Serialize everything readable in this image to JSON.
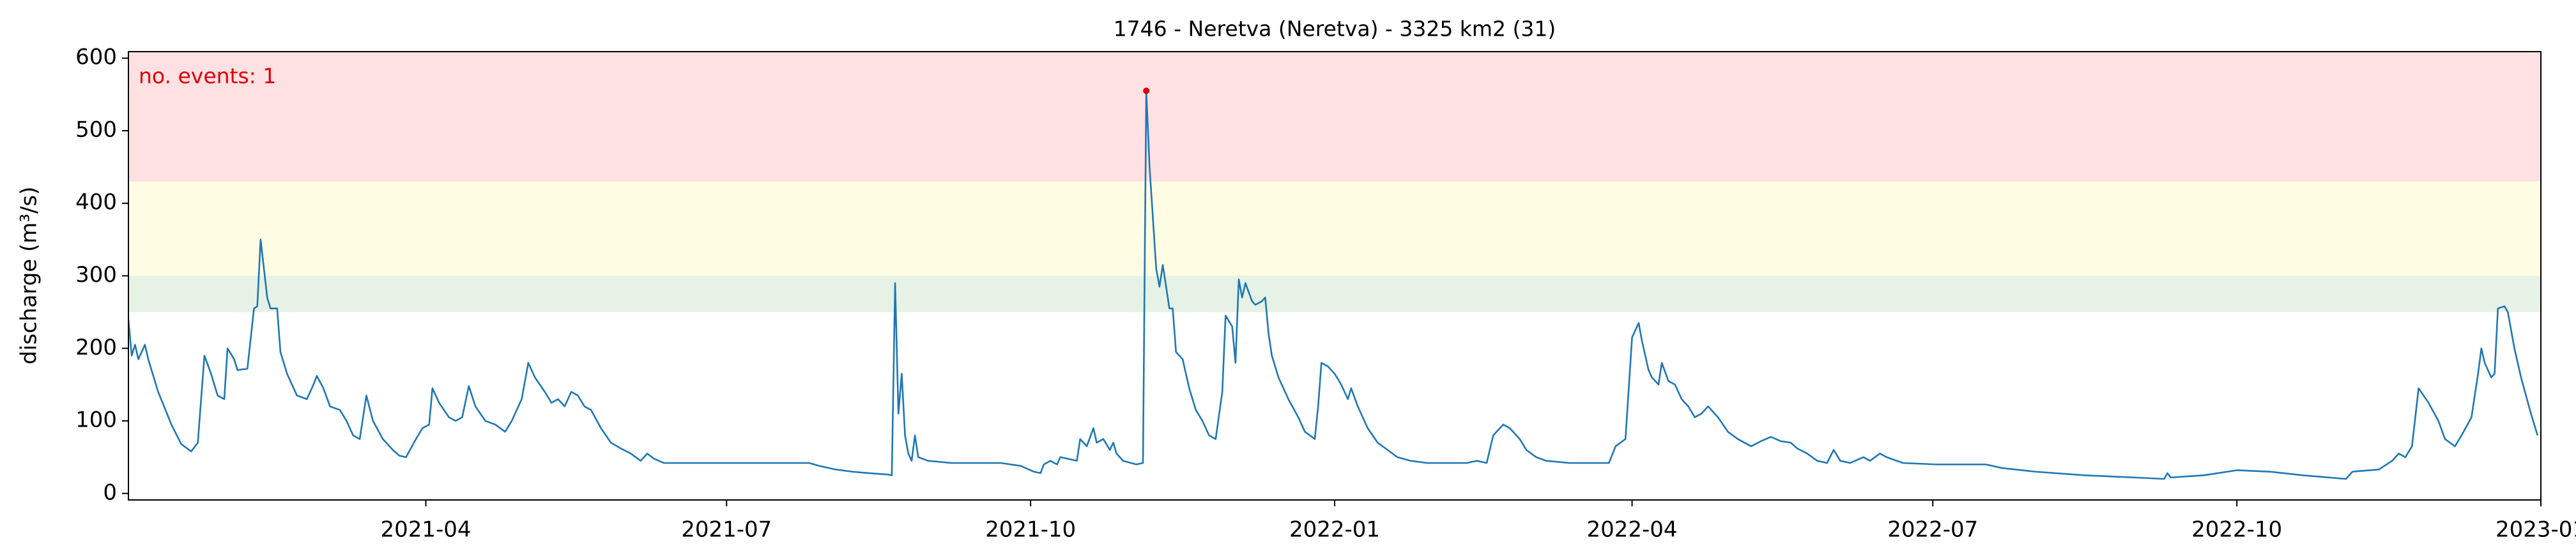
{
  "chart_data": {
    "type": "line",
    "title": "1746 - Neretva (Neretva) - 3325 km2 (31)",
    "y_label": "discharge (m³/s)",
    "annotation": "no. events: 1",
    "annotation_color": "#e00000",
    "xlim": [
      "2021-01-01",
      "2023-01-01"
    ],
    "xticks": [
      {
        "value": "2021-04-01",
        "label": "2021-04"
      },
      {
        "value": "2021-07-01",
        "label": "2021-07"
      },
      {
        "value": "2021-10-01",
        "label": "2021-10"
      },
      {
        "value": "2022-01-01",
        "label": "2022-01"
      },
      {
        "value": "2022-04-01",
        "label": "2022-04"
      },
      {
        "value": "2022-07-01",
        "label": "2022-07"
      },
      {
        "value": "2022-10-01",
        "label": "2022-10"
      },
      {
        "value": "2023-01-01",
        "label": "2023-01"
      }
    ],
    "ylim": [
      -9,
      609
    ],
    "yticks": [
      0,
      100,
      200,
      300,
      400,
      500,
      600
    ],
    "bands": [
      {
        "from": 250,
        "to": 300,
        "color": "#e5f2e5"
      },
      {
        "from": 300,
        "to": 430,
        "color": "#fefde4"
      },
      {
        "from": 430,
        "to": 609,
        "color": "#ffe1e4"
      }
    ],
    "x": [
      "2021-01-01",
      "2021-01-02",
      "2021-01-03",
      "2021-01-04",
      "2021-01-06",
      "2021-01-07",
      "2021-01-10",
      "2021-01-14",
      "2021-01-17",
      "2021-01-20",
      "2021-01-22",
      "2021-01-24",
      "2021-01-26",
      "2021-01-28",
      "2021-01-30",
      "2021-01-31",
      "2021-02-02",
      "2021-02-03",
      "2021-02-06",
      "2021-02-08",
      "2021-02-09",
      "2021-02-10",
      "2021-02-12",
      "2021-02-13",
      "2021-02-15",
      "2021-02-16",
      "2021-02-18",
      "2021-02-21",
      "2021-02-24",
      "2021-02-26",
      "2021-02-27",
      "2021-03-01",
      "2021-03-03",
      "2021-03-06",
      "2021-03-08",
      "2021-03-10",
      "2021-03-12",
      "2021-03-14",
      "2021-03-16",
      "2021-03-19",
      "2021-03-22",
      "2021-03-24",
      "2021-03-26",
      "2021-03-29",
      "2021-03-31",
      "2021-04-02",
      "2021-04-03",
      "2021-04-05",
      "2021-04-08",
      "2021-04-10",
      "2021-04-12",
      "2021-04-14",
      "2021-04-16",
      "2021-04-19",
      "2021-04-22",
      "2021-04-25",
      "2021-04-27",
      "2021-04-30",
      "2021-05-02",
      "2021-05-04",
      "2021-05-07",
      "2021-05-09",
      "2021-05-11",
      "2021-05-13",
      "2021-05-15",
      "2021-05-17",
      "2021-05-19",
      "2021-05-21",
      "2021-05-24",
      "2021-05-27",
      "2021-05-30",
      "2021-06-02",
      "2021-06-05",
      "2021-06-07",
      "2021-06-09",
      "2021-06-12",
      "2021-06-23",
      "2021-07-08",
      "2021-07-26",
      "2021-07-29",
      "2021-08-03",
      "2021-08-08",
      "2021-08-13",
      "2021-08-19",
      "2021-08-20",
      "2021-08-21",
      "2021-08-22",
      "2021-08-23",
      "2021-08-24",
      "2021-08-25",
      "2021-08-26",
      "2021-08-27",
      "2021-08-28",
      "2021-08-31",
      "2021-09-07",
      "2021-09-22",
      "2021-09-28",
      "2021-10-02",
      "2021-10-04",
      "2021-10-05",
      "2021-10-07",
      "2021-10-09",
      "2021-10-10",
      "2021-10-12",
      "2021-10-15",
      "2021-10-16",
      "2021-10-18",
      "2021-10-20",
      "2021-10-21",
      "2021-10-23",
      "2021-10-25",
      "2021-10-26",
      "2021-10-27",
      "2021-10-29",
      "2021-11-02",
      "2021-11-04",
      "2021-11-05",
      "2021-11-06",
      "2021-11-08",
      "2021-11-09",
      "2021-11-10",
      "2021-11-12",
      "2021-11-13",
      "2021-11-14",
      "2021-11-16",
      "2021-11-18",
      "2021-11-20",
      "2021-11-22",
      "2021-11-24",
      "2021-11-26",
      "2021-11-28",
      "2021-11-29",
      "2021-12-01",
      "2021-12-02",
      "2021-12-03",
      "2021-12-04",
      "2021-12-05",
      "2021-12-07",
      "2021-12-08",
      "2021-12-10",
      "2021-12-11",
      "2021-12-12",
      "2021-12-13",
      "2021-12-15",
      "2021-12-18",
      "2021-12-21",
      "2021-12-23",
      "2021-12-26",
      "2021-12-27",
      "2021-12-28",
      "2021-12-30",
      "2022-01-01",
      "2022-01-03",
      "2022-01-05",
      "2022-01-06",
      "2022-01-08",
      "2022-01-11",
      "2022-01-14",
      "2022-01-17",
      "2022-01-20",
      "2022-01-24",
      "2022-01-29",
      "2022-02-05",
      "2022-02-10",
      "2022-02-13",
      "2022-02-16",
      "2022-02-18",
      "2022-02-21",
      "2022-02-23",
      "2022-02-26",
      "2022-02-28",
      "2022-03-03",
      "2022-03-06",
      "2022-03-13",
      "2022-03-25",
      "2022-03-27",
      "2022-03-30",
      "2022-04-01",
      "2022-04-03",
      "2022-04-04",
      "2022-04-06",
      "2022-04-07",
      "2022-04-09",
      "2022-04-10",
      "2022-04-12",
      "2022-04-14",
      "2022-04-16",
      "2022-04-18",
      "2022-04-20",
      "2022-04-22",
      "2022-04-24",
      "2022-04-27",
      "2022-04-30",
      "2022-05-03",
      "2022-05-07",
      "2022-05-10",
      "2022-05-13",
      "2022-05-16",
      "2022-05-19",
      "2022-05-21",
      "2022-05-24",
      "2022-05-27",
      "2022-05-30",
      "2022-06-01",
      "2022-06-03",
      "2022-06-06",
      "2022-06-10",
      "2022-06-12",
      "2022-06-15",
      "2022-06-17",
      "2022-06-22",
      "2022-07-02",
      "2022-07-17",
      "2022-07-22",
      "2022-08-01",
      "2022-08-16",
      "2022-08-31",
      "2022-09-09",
      "2022-09-10",
      "2022-09-11",
      "2022-09-21",
      "2022-10-01",
      "2022-10-11",
      "2022-10-21",
      "2022-11-03",
      "2022-11-05",
      "2022-11-13",
      "2022-11-17",
      "2022-11-19",
      "2022-11-21",
      "2022-11-23",
      "2022-11-25",
      "2022-11-28",
      "2022-12-01",
      "2022-12-03",
      "2022-12-06",
      "2022-12-08",
      "2022-12-11",
      "2022-12-13",
      "2022-12-14",
      "2022-12-15",
      "2022-12-17",
      "2022-12-18",
      "2022-12-19",
      "2022-12-21",
      "2022-12-22",
      "2022-12-24",
      "2022-12-26",
      "2022-12-29",
      "2022-12-31"
    ],
    "series": [
      {
        "color": "#1f77b4",
        "values": [
          240,
          190,
          205,
          185,
          205,
          185,
          140,
          95,
          68,
          58,
          70,
          190,
          165,
          135,
          130,
          200,
          185,
          170,
          172,
          255,
          258,
          350,
          270,
          255,
          255,
          195,
          165,
          135,
          130,
          150,
          162,
          145,
          120,
          115,
          100,
          80,
          75,
          135,
          100,
          75,
          60,
          52,
          50,
          75,
          90,
          95,
          145,
          125,
          105,
          100,
          105,
          148,
          120,
          100,
          95,
          85,
          100,
          130,
          180,
          160,
          140,
          125,
          130,
          120,
          140,
          135,
          120,
          115,
          90,
          70,
          62,
          55,
          45,
          55,
          48,
          42,
          42,
          42,
          42,
          38,
          33,
          30,
          28,
          26,
          25,
          290,
          110,
          165,
          80,
          55,
          45,
          80,
          50,
          45,
          42,
          42,
          38,
          30,
          28,
          40,
          45,
          40,
          50,
          48,
          45,
          75,
          65,
          90,
          70,
          75,
          60,
          70,
          55,
          45,
          40,
          42,
          555,
          450,
          310,
          285,
          315,
          255,
          255,
          195,
          185,
          145,
          115,
          100,
          80,
          75,
          140,
          245,
          230,
          180,
          295,
          270,
          290,
          265,
          260,
          265,
          270,
          220,
          190,
          160,
          130,
          105,
          85,
          75,
          120,
          180,
          175,
          165,
          150,
          130,
          145,
          120,
          90,
          70,
          60,
          50,
          45,
          42,
          42,
          42,
          45,
          42,
          80,
          95,
          90,
          75,
          60,
          50,
          45,
          42,
          42,
          65,
          75,
          215,
          235,
          210,
          170,
          160,
          150,
          180,
          155,
          150,
          130,
          120,
          105,
          110,
          120,
          105,
          85,
          75,
          65,
          72,
          78,
          72,
          70,
          62,
          55,
          45,
          42,
          60,
          45,
          42,
          50,
          45,
          55,
          50,
          42,
          40,
          40,
          35,
          30,
          25,
          22,
          20,
          28,
          22,
          25,
          32,
          30,
          25,
          20,
          30,
          33,
          45,
          55,
          50,
          65,
          145,
          125,
          100,
          75,
          65,
          80,
          105,
          165,
          200,
          180,
          160,
          165,
          255,
          258,
          250,
          200,
          160,
          110,
          80
        ]
      }
    ],
    "events": {
      "x": [
        "2021-11-05"
      ],
      "values": [
        555
      ],
      "color": "#e00000"
    }
  }
}
